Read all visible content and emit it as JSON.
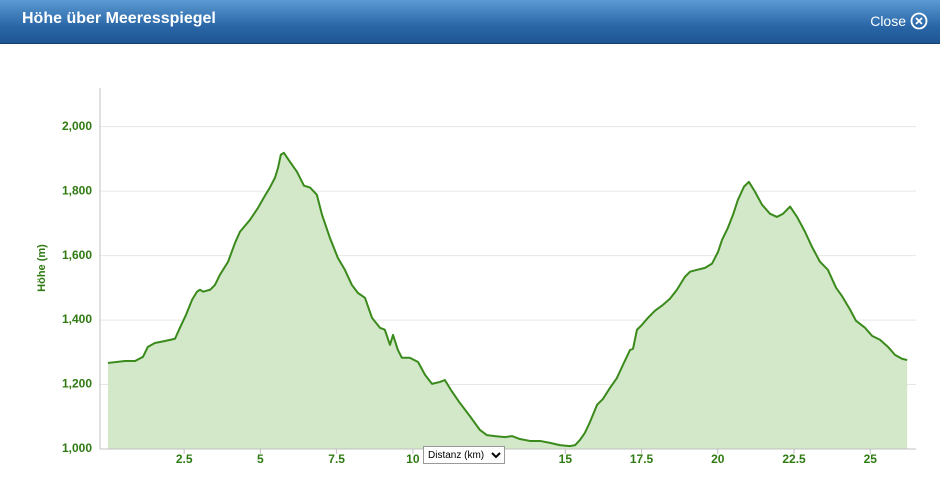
{
  "header": {
    "title": "Höhe über Meeresspiegel",
    "close": "Close"
  },
  "controls": {
    "x_axis_select": "Distanz (km)"
  },
  "chart_data": {
    "type": "area",
    "ylabel": "Höhe (m)",
    "color": "#3a8a1c",
    "fill_color": "#d3e7c9",
    "grid": true,
    "xlim": [
      -0.26,
      26.5
    ],
    "ylim": [
      1000,
      2120
    ],
    "xticks": [
      2.5,
      5,
      7.5,
      10,
      15,
      17.5,
      20,
      22.5,
      25
    ],
    "yticks": [
      {
        "value": 1000,
        "label": "1,000"
      },
      {
        "value": 1200,
        "label": "1,200"
      },
      {
        "value": 1400,
        "label": "1,400"
      },
      {
        "value": 1600,
        "label": "1,600"
      },
      {
        "value": 1800,
        "label": "1,800"
      },
      {
        "value": 2000,
        "label": "2,000"
      }
    ],
    "x": [
      0,
      0.56,
      0.89,
      1.15,
      1.31,
      1.54,
      1.87,
      2.2,
      2.36,
      2.56,
      2.76,
      2.92,
      3.02,
      3.12,
      3.35,
      3.51,
      3.67,
      3.94,
      4.17,
      4.33,
      4.66,
      4.92,
      5.15,
      5.31,
      5.48,
      5.58,
      5.67,
      5.77,
      5.97,
      6.2,
      6.43,
      6.63,
      6.85,
      7.02,
      7.28,
      7.54,
      7.77,
      8.0,
      8.2,
      8.43,
      8.66,
      8.92,
      9.08,
      9.25,
      9.35,
      9.51,
      9.64,
      9.9,
      10.17,
      10.4,
      10.63,
      10.89,
      11.05,
      11.25,
      11.54,
      11.87,
      12.2,
      12.43,
      12.69,
      13.02,
      13.25,
      13.51,
      13.84,
      14.17,
      14.5,
      14.82,
      15.15,
      15.32,
      15.48,
      15.64,
      15.81,
      16.04,
      16.23,
      16.46,
      16.69,
      16.89,
      17.12,
      17.22,
      17.35,
      17.51,
      17.71,
      17.94,
      18.2,
      18.43,
      18.66,
      18.92,
      19.09,
      19.32,
      19.58,
      19.81,
      20.01,
      20.14,
      20.33,
      20.5,
      20.66,
      20.86,
      21.02,
      21.22,
      21.45,
      21.71,
      21.94,
      22.14,
      22.37,
      22.6,
      22.86,
      23.09,
      23.35,
      23.61,
      23.88,
      24.07,
      24.34,
      24.53,
      24.83,
      25.06,
      25.32,
      25.58,
      25.81,
      26.04,
      26.21
    ],
    "values": [
      1267,
      1273,
      1273,
      1286,
      1317,
      1329,
      1335,
      1342,
      1376,
      1416,
      1463,
      1488,
      1494,
      1488,
      1494,
      1509,
      1540,
      1581,
      1640,
      1674,
      1711,
      1748,
      1786,
      1811,
      1842,
      1873,
      1913,
      1919,
      1891,
      1860,
      1817,
      1811,
      1789,
      1727,
      1655,
      1593,
      1556,
      1509,
      1484,
      1469,
      1407,
      1376,
      1370,
      1323,
      1354,
      1307,
      1283,
      1283,
      1270,
      1230,
      1202,
      1208,
      1214,
      1183,
      1143,
      1102,
      1059,
      1043,
      1040,
      1037,
      1040,
      1031,
      1025,
      1025,
      1019,
      1012,
      1009,
      1012,
      1028,
      1050,
      1084,
      1137,
      1155,
      1189,
      1220,
      1261,
      1307,
      1311,
      1370,
      1385,
      1407,
      1429,
      1447,
      1466,
      1494,
      1534,
      1550,
      1556,
      1562,
      1575,
      1612,
      1649,
      1686,
      1727,
      1773,
      1814,
      1829,
      1798,
      1758,
      1730,
      1720,
      1730,
      1752,
      1720,
      1674,
      1627,
      1581,
      1556,
      1500,
      1475,
      1432,
      1398,
      1376,
      1351,
      1339,
      1317,
      1292,
      1280,
      1276
    ]
  }
}
